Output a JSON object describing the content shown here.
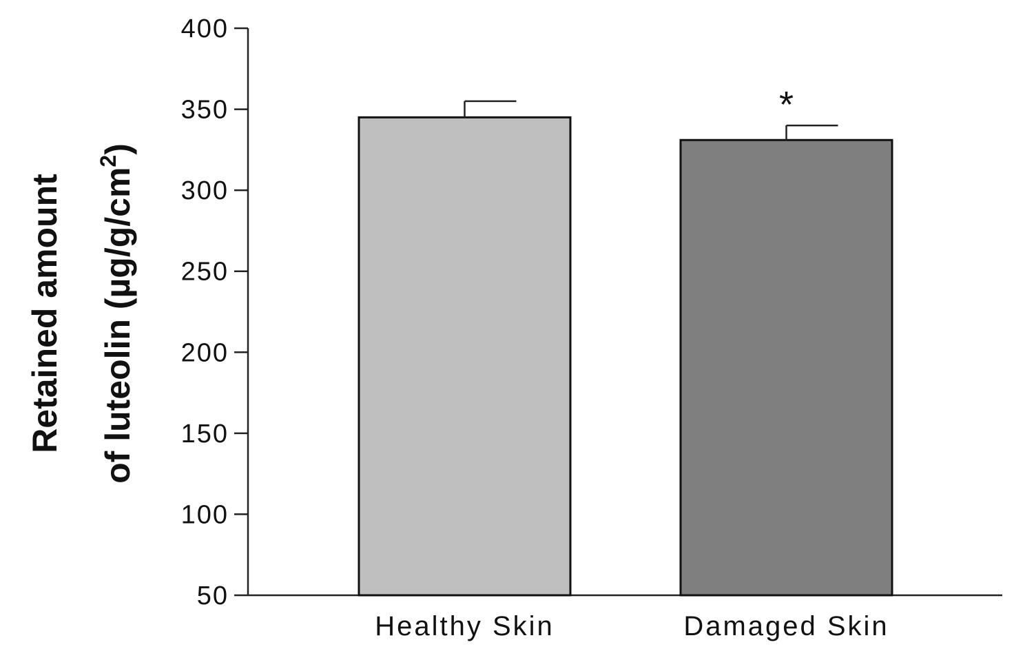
{
  "chart_data": {
    "type": "bar",
    "categories": [
      "Healthy Skin",
      "Damaged Skin"
    ],
    "values": [
      345,
      331
    ],
    "errors": [
      10,
      9
    ],
    "bar_colors": [
      "#bfbfbf",
      "#7f7f7f"
    ],
    "annotations": [
      "",
      "*"
    ],
    "title": "",
    "xlabel": "",
    "ylabel_line1": "Retained amount",
    "ylabel_line2_main": "of luteolin (µg/g/cm",
    "ylabel_line2_sup": "2",
    "ylabel_line2_end": ")",
    "ylim": [
      50,
      400
    ],
    "yticks": [
      50,
      100,
      150,
      200,
      250,
      300,
      350,
      400
    ],
    "grid": false,
    "legend": "none"
  }
}
